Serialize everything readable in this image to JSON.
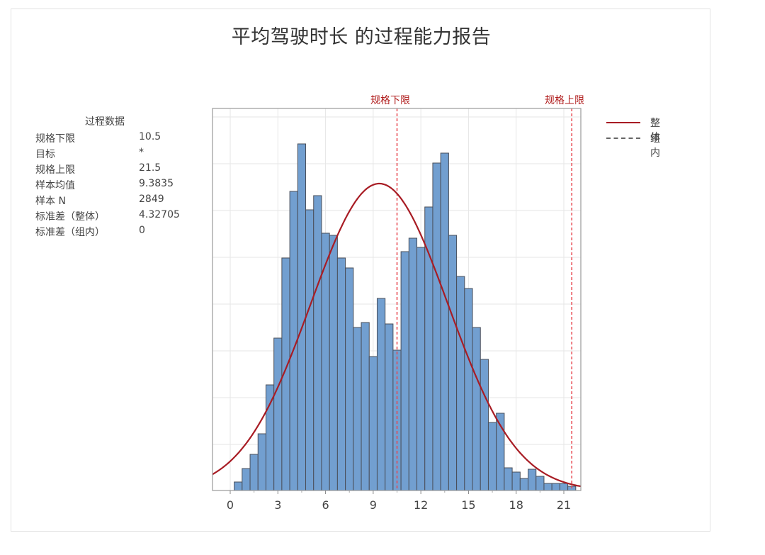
{
  "title": "平均驾驶时长 的过程能力报告",
  "process_data": {
    "heading": "过程数据",
    "rows": [
      {
        "label": "规格下限",
        "value": "10.5"
      },
      {
        "label": "目标",
        "value": "*"
      },
      {
        "label": "规格上限",
        "value": "21.5"
      },
      {
        "label": "样本均值",
        "value": "9.3835"
      },
      {
        "label": "样本 N",
        "value": "2849"
      },
      {
        "label": "标准差（整体）",
        "value": "4.32705"
      },
      {
        "label": "标准差（组内）",
        "value": "0"
      }
    ]
  },
  "spec_limits": {
    "lsl_label": "规格下限",
    "usl_label": "规格上限",
    "lsl": 10.5,
    "usl": 21.5,
    "color": "#e8464f"
  },
  "legend": {
    "overall_label": "整体",
    "within_label": "组内",
    "overall_color": "#a81c24",
    "within_color": "#555555"
  },
  "colors": {
    "bar_fill": "#729fd0",
    "bar_edge": "#4a4f5a",
    "curve": "#a81c24",
    "grid": "#e6e6e6"
  },
  "chart_data": {
    "type": "bar",
    "title": "平均驾驶时长 的过程能力报告",
    "xlabel": "",
    "ylabel": "",
    "x_ticks": [
      0,
      3,
      6,
      9,
      12,
      15,
      18,
      21
    ],
    "xlim": [
      -1.1,
      22.1
    ],
    "ylim": [
      0,
      245
    ],
    "bin_width": 0.5,
    "bin_start": 0.25,
    "grid": true,
    "legend_position": "right",
    "values_note": "relative bar heights (no y-axis tick labels shown); 1 unit ≈ 1 px",
    "values": [
      12,
      31,
      51,
      80,
      149,
      215,
      328,
      422,
      489,
      396,
      416,
      363,
      360,
      328,
      314,
      230,
      237,
      189,
      271,
      235,
      198,
      337,
      356,
      343,
      400,
      462,
      476,
      360,
      302,
      285,
      230,
      185,
      96,
      109,
      32,
      26,
      17,
      30,
      20,
      10,
      10,
      10,
      6
    ],
    "normal_curve": {
      "mean": 9.3835,
      "sd": 4.32705,
      "peak_height": 433
    },
    "series": [
      {
        "name": "整体",
        "style": "solid",
        "color": "#a81c24"
      },
      {
        "name": "组内",
        "style": "dashed",
        "color": "#555555"
      }
    ],
    "annotations": [
      {
        "label": "规格下限",
        "x": 10.5
      },
      {
        "label": "规格上限",
        "x": 21.5
      }
    ]
  }
}
